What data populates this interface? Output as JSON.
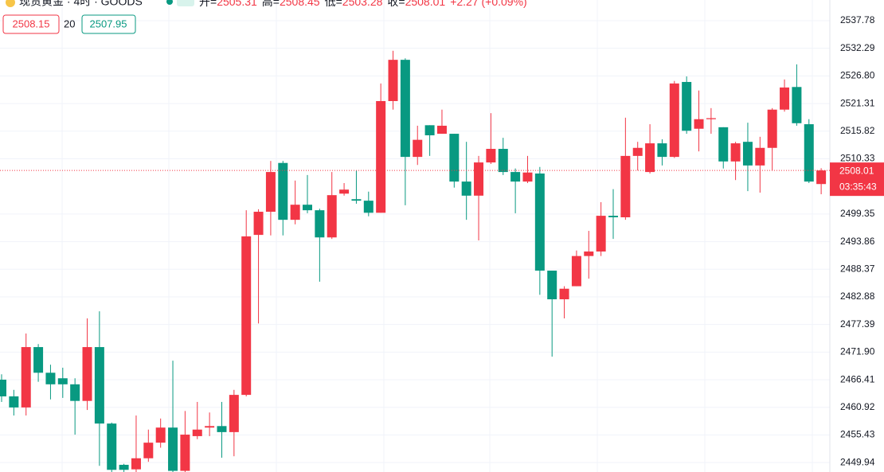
{
  "chart_data": {
    "type": "candlestick",
    "title": "现货黄金 · 4时 · GOODS",
    "ohlc_legend": [
      {
        "label": "开=",
        "value": 2505.31
      },
      {
        "label": "高=",
        "value": 2508.45
      },
      {
        "label": "低=",
        "value": 2503.28
      },
      {
        "label": "收=",
        "value": 2508.01
      }
    ],
    "change_text": "+2.27 (+0.09%)",
    "indicator": {
      "upper": "2508.15",
      "period": "20",
      "lower": "2507.95"
    },
    "up_color": "#f23645",
    "down_color": "#089981",
    "open": [
      2466.42,
      2463.1,
      2460.9,
      2472.9,
      2467.8,
      2466.7,
      2465.5,
      2462.2,
      2472.9,
      2457.7,
      2449.5,
      2448.6,
      2450.8,
      2453.9,
      2456.9,
      2448.3,
      2455.2,
      2456.9,
      2457.2,
      2456.0,
      2463.4,
      2495.2,
      2499.8,
      2509.5,
      2498.2,
      2501.2,
      2500.1,
      2494.7,
      2503.4,
      2502.3,
      2502.0,
      2499.6,
      2521.8,
      2530.0,
      2510.7,
      2517.0,
      2515.3,
      2515.3,
      2505.8,
      2503.0,
      2509.6,
      2512.3,
      2507.7,
      2505.8,
      2507.4,
      2488.1,
      2482.4,
      2485.0,
      2491.0,
      2491.9,
      2499.0,
      2498.7,
      2510.9,
      2507.7,
      2513.4,
      2510.7,
      2525.6,
      2516.3,
      2518.2,
      2516.6,
      2509.8,
      2513.7,
      2509.0,
      2512.5,
      2520.1,
      2524.6,
      2517.2,
      2505.31
    ],
    "high": [
      2467.5,
      2464.4,
      2475.6,
      2473.5,
      2469.4,
      2468.8,
      2466.7,
      2478.6,
      2480.0,
      2457.9,
      2449.7,
      2459.3,
      2456.5,
      2458.7,
      2470.2,
      2460.2,
      2462.0,
      2459.9,
      2462.0,
      2464.4,
      2500.1,
      2500.3,
      2509.9,
      2509.9,
      2506.0,
      2507.1,
      2500.4,
      2507.7,
      2505.5,
      2508.0,
      2503.8,
      2525.3,
      2531.8,
      2530.3,
      2516.9,
      2517.0,
      2520.1,
      2515.3,
      2513.7,
      2510.9,
      2519.4,
      2514.5,
      2508.4,
      2510.9,
      2508.7,
      2488.1,
      2485.0,
      2492.1,
      2496.0,
      2501.7,
      2504.3,
      2518.5,
      2513.7,
      2517.2,
      2514.2,
      2525.8,
      2526.7,
      2523.9,
      2520.4,
      2516.6,
      2513.7,
      2517.5,
      2514.7,
      2520.4,
      2526.1,
      2529.1,
      2518.2,
      2508.45
    ],
    "low": [
      2462.0,
      2459.3,
      2459.3,
      2466.0,
      2462.5,
      2462.8,
      2455.5,
      2460.4,
      2449.3,
      2447.0,
      2447.0,
      2447.5,
      2450.1,
      2452.9,
      2447.0,
      2447.0,
      2454.6,
      2455.2,
      2450.9,
      2451.2,
      2463.1,
      2477.6,
      2495.1,
      2495.1,
      2497.3,
      2499.5,
      2485.9,
      2494.4,
      2503.0,
      2501.4,
      2498.9,
      2499.6,
      2520.1,
      2501.1,
      2509.1,
      2510.9,
      2515.3,
      2504.6,
      2498.2,
      2494.1,
      2509.3,
      2507.1,
      2499.5,
      2505.5,
      2483.3,
      2471.0,
      2478.6,
      2485.0,
      2486.5,
      2491.0,
      2494.4,
      2498.2,
      2508.0,
      2507.4,
      2509.0,
      2510.5,
      2515.3,
      2511.8,
      2515.3,
      2508.4,
      2506.1,
      2503.9,
      2503.6,
      2508.0,
      2519.7,
      2516.9,
      2505.5,
      2503.28
    ],
    "close": [
      2463.1,
      2460.9,
      2472.9,
      2467.8,
      2465.5,
      2465.5,
      2462.2,
      2472.9,
      2457.7,
      2448.5,
      2448.5,
      2450.8,
      2453.9,
      2456.9,
      2448.3,
      2455.5,
      2456.5,
      2457.2,
      2456.0,
      2463.4,
      2494.9,
      2499.8,
      2507.7,
      2498.2,
      2501.2,
      2500.1,
      2494.7,
      2503.1,
      2504.2,
      2502.0,
      2499.6,
      2521.8,
      2530.0,
      2510.7,
      2514.1,
      2515.0,
      2516.9,
      2505.8,
      2503.0,
      2509.6,
      2512.3,
      2507.7,
      2505.8,
      2507.6,
      2488.1,
      2482.4,
      2484.5,
      2491.0,
      2491.9,
      2499.0,
      2498.7,
      2510.9,
      2512.5,
      2513.4,
      2510.7,
      2525.3,
      2515.9,
      2518.2,
      2518.4,
      2509.8,
      2513.4,
      2509.0,
      2512.5,
      2520.1,
      2524.5,
      2517.4,
      2505.8,
      2508.01
    ],
    "ylim": [
      2448.07,
      2541.89
    ],
    "yticks": [
      2537.78,
      2532.29,
      {
        "value": 2526.8,
        "label": "2526.80"
      },
      2521.31,
      2515.82,
      2510.33,
      2499.35,
      2493.86,
      2488.37,
      2482.88,
      2477.39,
      {
        "value": 2471.9,
        "label": "2471.90"
      },
      2466.41,
      2460.92,
      2455.43,
      2449.94
    ],
    "grid": true,
    "last_price": 2508.01,
    "countdown": "03:35:43"
  }
}
